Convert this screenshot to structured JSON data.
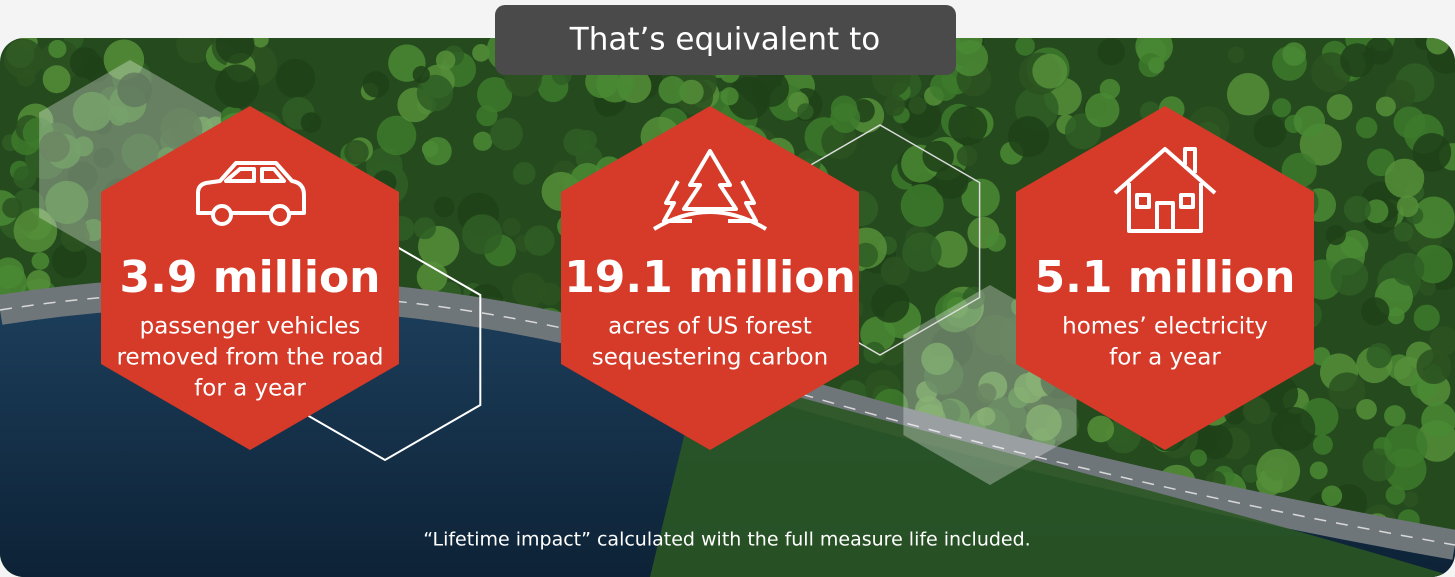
{
  "header": {
    "title": "That’s equivalent to"
  },
  "cards": [
    {
      "stat": "3.9 million",
      "description": [
        "passenger vehicles",
        "removed from the road",
        "for a year"
      ]
    },
    {
      "stat": "19.1 million",
      "description": [
        "acres of US forest",
        "sequestering carbon"
      ]
    },
    {
      "stat": "5.1 million",
      "description": [
        "homes’ electricity",
        "for a year"
      ]
    }
  ],
  "footnote": "“Lifetime impact” calculated with the full measure life included."
}
